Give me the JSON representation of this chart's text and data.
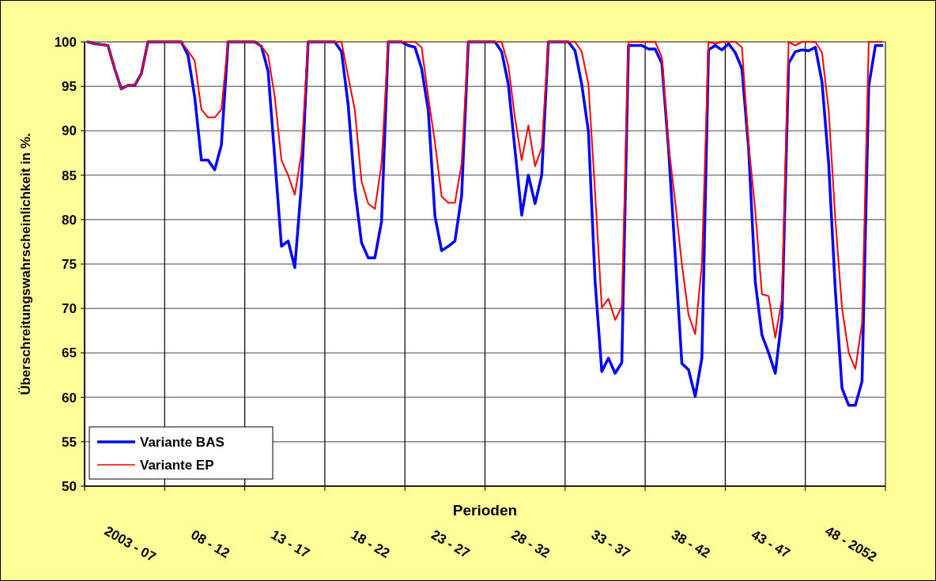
{
  "chart_data": {
    "type": "line",
    "xlabel": "Perioden",
    "ylabel": "Überschreitungswahrscheinlichkeit in %.",
    "categories": [
      null,
      null,
      null,
      null,
      null,
      null,
      "2003 - 07",
      null,
      null,
      null,
      null,
      null,
      null,
      null,
      null,
      null,
      null,
      null,
      "08 - 12",
      null,
      null,
      null,
      null,
      null,
      null,
      null,
      null,
      null,
      null,
      null,
      "13 - 17",
      null,
      null,
      null,
      null,
      null,
      null,
      null,
      null,
      null,
      null,
      null,
      "18 - 22",
      null,
      null,
      null,
      null,
      null,
      null,
      null,
      null,
      null,
      null,
      null,
      "23 - 27",
      null,
      null,
      null,
      null,
      null,
      null,
      null,
      null,
      null,
      null,
      null,
      "28 - 32",
      null,
      null,
      null,
      null,
      null,
      null,
      null,
      null,
      null,
      null,
      null,
      "33 - 37",
      null,
      null,
      null,
      null,
      null,
      null,
      null,
      null,
      null,
      null,
      null,
      "38 - 42",
      null,
      null,
      null,
      null,
      null,
      null,
      null,
      null,
      null,
      null,
      null,
      "43 - 47",
      null,
      null,
      null,
      null,
      null,
      null,
      null,
      null,
      null,
      null,
      null,
      "48 - 2052",
      null,
      null,
      null,
      null,
      null
    ],
    "ylim": [
      50,
      100
    ],
    "yticks": [
      50,
      55,
      60,
      65,
      70,
      75,
      80,
      85,
      90,
      95,
      100
    ],
    "grid": true,
    "legend": "bottom left",
    "line_style": "solid",
    "series": [
      {
        "name": "Variante BAS",
        "color": "#0000ff",
        "values": [
          100,
          99.8,
          99.7,
          99.6,
          97.0,
          94.7,
          95.1,
          95.1,
          96.4,
          100,
          100,
          100,
          100,
          100,
          100,
          98.5,
          93.8,
          86.7,
          86.7,
          85.6,
          88.4,
          100,
          100,
          100,
          100,
          100,
          99.5,
          96.7,
          86.9,
          77.0,
          77.6,
          74.6,
          84.0,
          100,
          100,
          100,
          100,
          100,
          98.9,
          92.9,
          83.4,
          77.4,
          75.7,
          75.7,
          79.8,
          100,
          100,
          100,
          99.6,
          99.4,
          97.0,
          92.3,
          80.4,
          76.5,
          77.0,
          77.6,
          82.7,
          100,
          100,
          100,
          100,
          100,
          98.9,
          95.2,
          87.8,
          80.5,
          85.0,
          81.8,
          85.0,
          100,
          100,
          100,
          100,
          99.0,
          95.2,
          89.9,
          73.0,
          62.9,
          64.4,
          62.7,
          63.9,
          99.6,
          99.6,
          99.6,
          99.2,
          99.2,
          97.6,
          88.0,
          76.0,
          63.8,
          63.1,
          60.1,
          64.4,
          99.1,
          99.6,
          99.1,
          99.8,
          98.8,
          97.0,
          88.0,
          73.0,
          67.0,
          65.0,
          62.7,
          69.0,
          97.6,
          98.9,
          99.1,
          99.0,
          99.4,
          95.5,
          86.3,
          72.0,
          61.0,
          59.1,
          59.1,
          61.8,
          95.0,
          99.6,
          99.6
        ]
      },
      {
        "name": "Variante EP",
        "color": "#ff0000",
        "values": [
          100,
          99.8,
          99.7,
          99.6,
          97.0,
          94.7,
          95.1,
          95.1,
          96.4,
          100,
          100,
          100,
          100,
          100,
          100,
          99.0,
          97.9,
          92.4,
          91.5,
          91.5,
          92.4,
          100,
          100,
          100,
          100,
          100,
          99.5,
          98.5,
          93.8,
          86.7,
          85.0,
          82.8,
          87.5,
          100,
          100,
          100,
          100,
          100,
          100,
          96.1,
          92.3,
          84.3,
          81.8,
          81.2,
          86.3,
          100,
          100,
          100,
          100,
          100,
          99.4,
          93.8,
          88.7,
          82.6,
          81.9,
          81.9,
          86.3,
          100,
          100,
          100,
          100,
          100,
          100,
          97.3,
          91.4,
          86.7,
          90.6,
          86.0,
          88.1,
          100,
          100,
          100,
          100,
          100,
          98.9,
          95.2,
          83.0,
          70.1,
          71.1,
          68.7,
          70.2,
          100,
          100,
          100,
          100,
          100,
          98.3,
          88.4,
          82.0,
          75.0,
          69.3,
          67.1,
          75.0,
          100,
          99.8,
          100,
          100,
          100,
          99.4,
          88.5,
          81.0,
          71.6,
          71.4,
          66.7,
          71.1,
          100,
          99.6,
          100,
          100,
          100,
          98.8,
          92.3,
          80.0,
          70.0,
          65.0,
          63.2,
          68.3,
          100,
          100,
          100
        ]
      }
    ]
  }
}
